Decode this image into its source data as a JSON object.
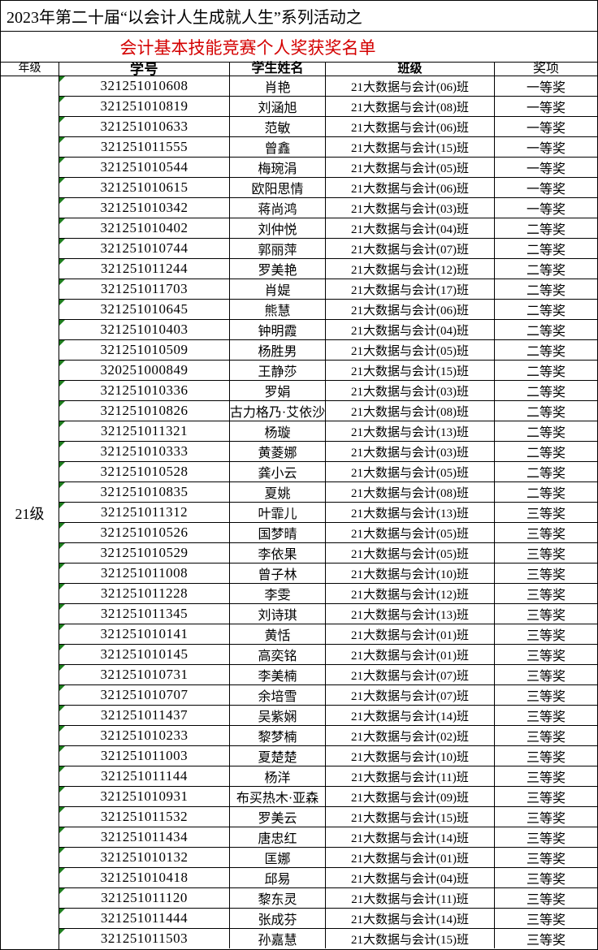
{
  "page": {
    "title_line": "2023年第二十届“以会计人生成就人生”系列活动之",
    "subtitle": "会计基本技能竞赛个人奖获奖名单"
  },
  "colors": {
    "subtitle_red": "#d40000",
    "triangle_green": "#1e7e1e",
    "border_black": "#000000"
  },
  "table": {
    "headers": {
      "grade": "年级",
      "student_id": "学号",
      "name": "学生姓名",
      "class": "班级",
      "award": "奖项"
    },
    "grade_label": "21级",
    "rows": [
      {
        "id": "321251010608",
        "name": "肖艳",
        "class_name": "21大数据与会计(06)班",
        "award": "一等奖"
      },
      {
        "id": "321251010819",
        "name": "刘涵旭",
        "class_name": "21大数据与会计(08)班",
        "award": "一等奖"
      },
      {
        "id": "321251010633",
        "name": "范敏",
        "class_name": "21大数据与会计(06)班",
        "award": "一等奖"
      },
      {
        "id": "321251011555",
        "name": "曾鑫",
        "class_name": "21大数据与会计(15)班",
        "award": "一等奖"
      },
      {
        "id": "321251010544",
        "name": "梅琬涓",
        "class_name": "21大数据与会计(05)班",
        "award": "一等奖"
      },
      {
        "id": "321251010615",
        "name": "欧阳思情",
        "class_name": "21大数据与会计(06)班",
        "award": "一等奖"
      },
      {
        "id": "321251010342",
        "name": "蒋尚鸿",
        "class_name": "21大数据与会计(03)班",
        "award": "一等奖"
      },
      {
        "id": "321251010402",
        "name": "刘仲悦",
        "class_name": "21大数据与会计(04)班",
        "award": "二等奖"
      },
      {
        "id": "321251010744",
        "name": "郭丽萍",
        "class_name": "21大数据与会计(07)班",
        "award": "二等奖"
      },
      {
        "id": "321251011244",
        "name": "罗美艳",
        "class_name": "21大数据与会计(12)班",
        "award": "二等奖"
      },
      {
        "id": "321251011703",
        "name": "肖媞",
        "class_name": "21大数据与会计(17)班",
        "award": "二等奖"
      },
      {
        "id": "321251010645",
        "name": "熊慧",
        "class_name": "21大数据与会计(06)班",
        "award": "二等奖"
      },
      {
        "id": "321251010403",
        "name": "钟明霞",
        "class_name": "21大数据与会计(04)班",
        "award": "二等奖"
      },
      {
        "id": "321251010509",
        "name": "杨胜男",
        "class_name": "21大数据与会计(05)班",
        "award": "二等奖"
      },
      {
        "id": "320251000849",
        "name": "王静莎",
        "class_name": "21大数据与会计(15)班",
        "award": "二等奖"
      },
      {
        "id": "321251010336",
        "name": "罗娟",
        "class_name": "21大数据与会计(03)班",
        "award": "二等奖"
      },
      {
        "id": "321251010826",
        "name": "古力格乃·艾依沙",
        "class_name": "21大数据与会计(08)班",
        "award": "二等奖"
      },
      {
        "id": "321251011321",
        "name": "杨璇",
        "class_name": "21大数据与会计(13)班",
        "award": "二等奖"
      },
      {
        "id": "321251010333",
        "name": "黄菱娜",
        "class_name": "21大数据与会计(03)班",
        "award": "二等奖"
      },
      {
        "id": "321251010528",
        "name": "龚小云",
        "class_name": "21大数据与会计(05)班",
        "award": "二等奖"
      },
      {
        "id": "321251010835",
        "name": "夏姚",
        "class_name": "21大数据与会计(08)班",
        "award": "二等奖"
      },
      {
        "id": "321251011312",
        "name": "叶霏儿",
        "class_name": "21大数据与会计(13)班",
        "award": "三等奖"
      },
      {
        "id": "321251010526",
        "name": "国梦晴",
        "class_name": "21大数据与会计(05)班",
        "award": "三等奖"
      },
      {
        "id": "321251010529",
        "name": "李依果",
        "class_name": "21大数据与会计(05)班",
        "award": "三等奖"
      },
      {
        "id": "321251011008",
        "name": "曾子林",
        "class_name": "21大数据与会计(10)班",
        "award": "三等奖"
      },
      {
        "id": "321251011228",
        "name": "李雯",
        "class_name": "21大数据与会计(12)班",
        "award": "三等奖"
      },
      {
        "id": "321251011345",
        "name": "刘诗琪",
        "class_name": "21大数据与会计(13)班",
        "award": "三等奖"
      },
      {
        "id": "321251010141",
        "name": "黄恬",
        "class_name": "21大数据与会计(01)班",
        "award": "三等奖"
      },
      {
        "id": "321251010145",
        "name": "高奕铭",
        "class_name": "21大数据与会计(01)班",
        "award": "三等奖"
      },
      {
        "id": "321251010731",
        "name": "李美楠",
        "class_name": "21大数据与会计(07)班",
        "award": "三等奖"
      },
      {
        "id": "321251010707",
        "name": "余培雪",
        "class_name": "21大数据与会计(07)班",
        "award": "三等奖"
      },
      {
        "id": "321251011437",
        "name": "吴紫娴",
        "class_name": "21大数据与会计(14)班",
        "award": "三等奖"
      },
      {
        "id": "321251010233",
        "name": "黎梦楠",
        "class_name": "21大数据与会计(02)班",
        "award": "三等奖"
      },
      {
        "id": "321251011003",
        "name": "夏楚楚",
        "class_name": "21大数据与会计(10)班",
        "award": "三等奖"
      },
      {
        "id": "321251011144",
        "name": "杨洋",
        "class_name": "21大数据与会计(11)班",
        "award": "三等奖"
      },
      {
        "id": "321251010931",
        "name": "布买热木·亚森",
        "class_name": "21大数据与会计(09)班",
        "award": "三等奖"
      },
      {
        "id": "321251011532",
        "name": "罗美云",
        "class_name": "21大数据与会计(15)班",
        "award": "三等奖"
      },
      {
        "id": "321251011434",
        "name": "唐忠红",
        "class_name": "21大数据与会计(14)班",
        "award": "三等奖"
      },
      {
        "id": "321251010132",
        "name": "匡娜",
        "class_name": "21大数据与会计(01)班",
        "award": "三等奖"
      },
      {
        "id": "321251010418",
        "name": "邱易",
        "class_name": "21大数据与会计(04)班",
        "award": "三等奖"
      },
      {
        "id": "321251011120",
        "name": "黎东灵",
        "class_name": "21大数据与会计(11)班",
        "award": "三等奖"
      },
      {
        "id": "321251011444",
        "name": "张成芬",
        "class_name": "21大数据与会计(14)班",
        "award": "三等奖"
      },
      {
        "id": "321251011503",
        "name": "孙嘉慧",
        "class_name": "21大数据与会计(15)班",
        "award": "三等奖"
      }
    ]
  }
}
